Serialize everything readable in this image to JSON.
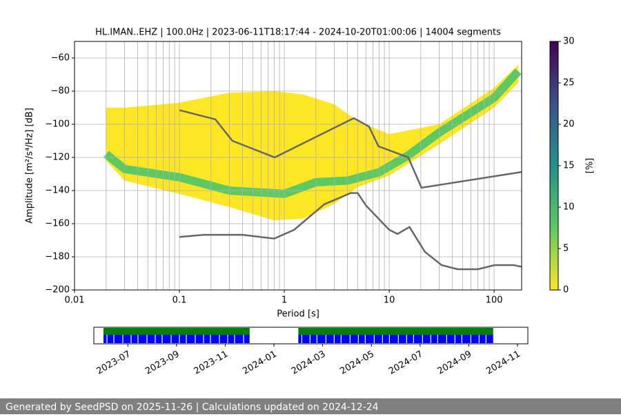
{
  "chart_data": {
    "type": "ppsd",
    "title": "HL.IMAN..EHZ | 100.0Hz | 2023-06-11T18:17:44 - 2024-10-20T01:00:06 | 14004 segments",
    "xlabel": "Period [s]",
    "ylabel": "Amplitude [m²/s⁴/Hz] [dB]",
    "log_x": true,
    "grid": true,
    "xlim": [
      0.01,
      183
    ],
    "ylim": [
      -200,
      -50
    ],
    "xticks": [
      0.01,
      0.1,
      1,
      10,
      100
    ],
    "yticks": [
      {
        "value": -200,
        "label": "−200"
      },
      {
        "value": -180,
        "label": "−180"
      },
      {
        "value": -160,
        "label": "−160"
      },
      {
        "value": -140,
        "label": "−140"
      },
      {
        "value": -120,
        "label": "−120"
      },
      {
        "value": -100,
        "label": "−100"
      },
      {
        "value": -80,
        "label": "−80"
      },
      {
        "value": -60,
        "label": "−60"
      }
    ],
    "psd_envelope": {
      "color": "#fde725",
      "x": [
        0.02,
        0.03,
        0.1,
        0.3,
        0.8,
        1.5,
        3,
        5,
        10,
        30,
        100,
        170
      ],
      "lower": [
        -122,
        -134,
        -142,
        -150,
        -158,
        -157,
        -148,
        -138,
        -131,
        -112,
        -90,
        -75
      ],
      "upper": [
        -90,
        -90,
        -87,
        -81,
        -80,
        -82,
        -88,
        -98,
        -106,
        -100,
        -78,
        -64
      ]
    },
    "psd_mode": {
      "color": "#5ec962",
      "x": [
        0.02,
        0.03,
        0.1,
        0.3,
        1,
        2,
        4,
        8,
        15,
        30,
        100,
        170
      ],
      "values": [
        -118,
        -127,
        -132,
        -140,
        -142,
        -135,
        -134,
        -129,
        -119,
        -105,
        -84,
        -68
      ]
    },
    "nhnm": {
      "color": "#666666",
      "x": [
        0.1,
        0.22,
        0.32,
        0.81,
        4.6,
        6.4,
        7.9,
        15.2,
        20.3,
        183
      ],
      "values": [
        -91.5,
        -97,
        -110,
        -120,
        -96.3,
        -101.3,
        -113.3,
        -120,
        -138.3,
        -128.8
      ]
    },
    "nlnm": {
      "color": "#666666",
      "x": [
        0.1,
        0.17,
        0.4,
        0.8,
        1.24,
        2.4,
        4.3,
        5,
        6,
        10,
        12,
        15.6,
        21.9,
        31.6,
        45,
        70,
        101,
        154,
        183
      ],
      "values": [
        -168,
        -166.7,
        -166.7,
        -169,
        -163.7,
        -148.3,
        -141.5,
        -141.5,
        -149,
        -163.7,
        -166.2,
        -162,
        -177,
        -185,
        -187.5,
        -187.5,
        -185,
        -185,
        -186
      ]
    },
    "colorbar": {
      "label": "[%]",
      "lim": [
        0,
        30
      ],
      "ticks": [
        0,
        5,
        10,
        15,
        20,
        25,
        30
      ],
      "colors": [
        "#fde725",
        "#5ec962",
        "#21918c",
        "#3b528b",
        "#440154"
      ]
    },
    "timeline": {
      "xlim": [
        "2023-06",
        "2024-11"
      ],
      "ticks": [
        "2023-07",
        "2023-09",
        "2023-11",
        "2024-01",
        "2024-03",
        "2024-05",
        "2024-07",
        "2024-09",
        "2024-11"
      ],
      "coverage": [
        {
          "start": "2023-06",
          "end": "2023-12"
        },
        {
          "start": "2024-02",
          "end": "2024-10"
        }
      ],
      "colors": [
        "#008000",
        "#0000ff"
      ]
    }
  },
  "footer": "Generated by SeedPSD on 2025-11-26 | Calculations updated on 2024-12-24"
}
